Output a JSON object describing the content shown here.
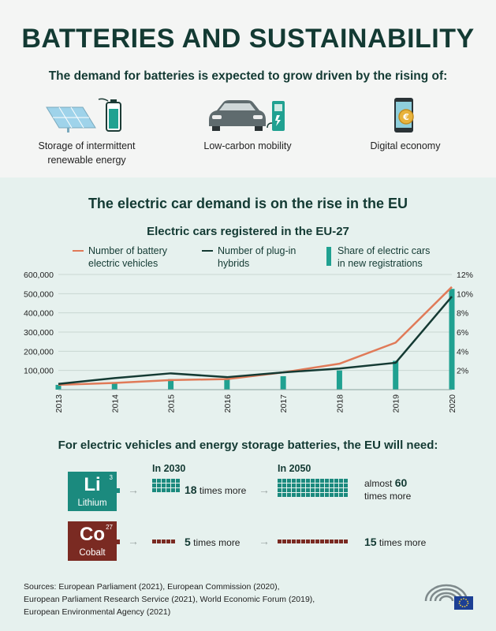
{
  "header": {
    "title": "BATTERIES AND SUSTAINABILITY",
    "subtitle": "The demand for batteries is expected to grow driven by the rising of:"
  },
  "drivers": [
    {
      "line1": "Storage of intermittent",
      "line2": "renewable energy",
      "icon": "solar-panel-battery-icon"
    },
    {
      "line1": "Low-carbon mobility",
      "line2": "",
      "icon": "electric-car-charger-icon"
    },
    {
      "line1": "Digital economy",
      "line2": "",
      "icon": "smartphone-coin-icon"
    }
  ],
  "section": {
    "heading": "The electric car demand is on the rise in the EU"
  },
  "legend": {
    "bev_line1": "Number of battery",
    "bev_line2": "electric vehicles",
    "phev_line1": "Number of plug-in",
    "phev_line2": "hybrids",
    "share_line1": "Share of electric cars",
    "share_line2": "in new registrations"
  },
  "colors": {
    "bev": "#e07a58",
    "phev": "#143a33",
    "share": "#20a191",
    "lithium": "#1b8a7e",
    "cobalt": "#7a2a22"
  },
  "chart_data": {
    "type": "line",
    "title": "Electric cars registered in the EU-27",
    "categories": [
      "2013",
      "2014",
      "2015",
      "2016",
      "2017",
      "2018",
      "2019",
      "2020"
    ],
    "series": [
      {
        "name": "Number of battery electric vehicles",
        "axis": "left",
        "values": [
          25000,
          35000,
          50000,
          55000,
          90000,
          135000,
          245000,
          535000
        ]
      },
      {
        "name": "Number of plug-in hybrids",
        "axis": "left",
        "values": [
          30000,
          60000,
          85000,
          65000,
          90000,
          110000,
          140000,
          485000
        ]
      },
      {
        "name": "Share of electric cars in new registrations",
        "type": "bar",
        "axis": "right",
        "values": [
          0.5,
          0.7,
          1.1,
          1.2,
          1.4,
          2.0,
          3.0,
          10.5
        ]
      }
    ],
    "yticks_left": [
      "100,000",
      "200,000",
      "300,000",
      "400,000",
      "500,000",
      "600,000"
    ],
    "yticks_right": [
      "2%",
      "4%",
      "6%",
      "8%",
      "10%",
      "12%"
    ],
    "ylim_left": [
      0,
      600000
    ],
    "ylim_right": [
      0,
      12
    ]
  },
  "materials": {
    "heading": "For electric vehicles and energy storage batteries, the EU will need:",
    "year_2030": "In 2030",
    "year_2050": "In 2050",
    "lithium": {
      "symbol": "Li",
      "number": "3",
      "name": "Lithium",
      "x2030_value": "18",
      "x2030_text": "times more",
      "x2050_prefix": "almost",
      "x2050_value": "60",
      "x2050_text": "times more"
    },
    "cobalt": {
      "symbol": "Co",
      "number": "27",
      "name": "Cobalt",
      "x2030_value": "5",
      "x2030_text": "times more",
      "x2050_value": "15",
      "x2050_text": "times more"
    }
  },
  "sources": {
    "line1": "Sources: European Parliament (2021), European Commission (2020),",
    "line2": "European Parliament Research Service (2021), World Economic Forum (2019),",
    "line3": "European Environmental Agency (2021)"
  }
}
